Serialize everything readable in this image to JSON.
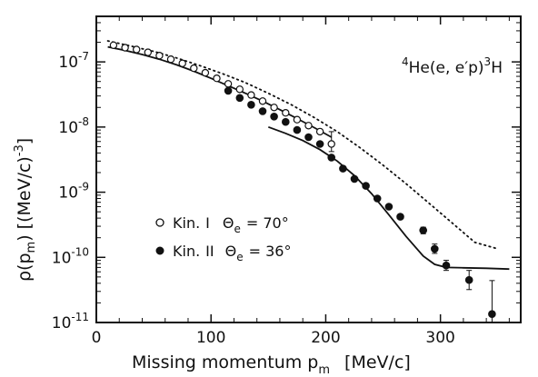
{
  "chart_data": {
    "type": "scatter",
    "xlabel": "Missing momentum p",
    "xlabel_sub": "m",
    "xlabel_unit": "[MeV/c]",
    "ylabel": "ρ(p_m) [(MeV/c)^-3]",
    "xlim": [
      0,
      370
    ],
    "ylim": [
      1e-11,
      5e-07
    ],
    "yscale": "log",
    "x_ticks": [
      0,
      100,
      200,
      300
    ],
    "x_tick_labels": [
      "0",
      "100",
      "200",
      "300"
    ],
    "y_ticks": [
      1e-11,
      1e-10,
      1e-09,
      1e-08,
      1e-07
    ],
    "y_tick_mantissa": "10",
    "y_tick_exponents": [
      "-11",
      "-10",
      "-9",
      "-8",
      "-7"
    ],
    "annotation": {
      "mass_number": "4",
      "nucleus": "He",
      "reaction": "(e, e′p)",
      "residual_mass_number": "3",
      "residual": "H"
    },
    "legend": {
      "position": "center-left",
      "entries": [
        {
          "marker": "open",
          "label_kin": "Kin.",
          "label_numeral": "I",
          "label_angle_symbol": "Θ",
          "label_angle_sub": "e",
          "label_value": "= 70°"
        },
        {
          "marker": "filled",
          "label_kin": "Kin.",
          "label_numeral": "II",
          "label_angle_symbol": "Θ",
          "label_angle_sub": "e",
          "label_value": "= 36°"
        }
      ]
    },
    "series": [
      {
        "name": "Kin. I Θe = 70°",
        "marker": "open",
        "x": [
          15,
          25,
          35,
          45,
          55,
          65,
          75,
          85,
          95,
          105,
          115,
          125,
          135,
          145,
          155,
          165,
          175,
          185,
          195,
          205
        ],
        "y": [
          1.8e-07,
          1.65e-07,
          1.55e-07,
          1.4e-07,
          1.25e-07,
          1.1e-07,
          9.5e-08,
          8e-08,
          6.8e-08,
          5.6e-08,
          4.6e-08,
          3.8e-08,
          3.1e-08,
          2.5e-08,
          2e-08,
          1.65e-08,
          1.3e-08,
          1.05e-08,
          8.5e-09,
          5.5e-09
        ]
      },
      {
        "name": "Kin. II Θe = 36°",
        "marker": "filled",
        "x": [
          115,
          125,
          135,
          145,
          155,
          165,
          175,
          185,
          195,
          205,
          215,
          225,
          235,
          245,
          255,
          265,
          285,
          295,
          305,
          325,
          345
        ],
        "y": [
          3.6e-08,
          2.8e-08,
          2.2e-08,
          1.75e-08,
          1.45e-08,
          1.2e-08,
          9e-09,
          7e-09,
          5.5e-09,
          3.4e-09,
          2.3e-09,
          1.6e-09,
          1.25e-09,
          8e-10,
          6e-10,
          4.2e-10,
          2.6e-10,
          1.35e-10,
          7.5e-11,
          4.5e-11,
          1.35e-11
        ]
      }
    ],
    "error_bars": [
      {
        "x": 205,
        "y_low": 4.2e-09,
        "y_high": 8.5e-09
      },
      {
        "x": 285,
        "y_low": 2.3e-10,
        "y_high": 2.9e-10
      },
      {
        "x": 295,
        "y_low": 1.15e-10,
        "y_high": 1.6e-10
      },
      {
        "x": 305,
        "y_low": 6.3e-11,
        "y_high": 9e-11
      },
      {
        "x": 325,
        "y_low": 3.2e-11,
        "y_high": 6.3e-11
      },
      {
        "x": 345,
        "y_low": 1e-11,
        "y_high": 4.4e-11
      }
    ],
    "curves": [
      {
        "style": "solid",
        "x": [
          10,
          25,
          40,
          55,
          70,
          85,
          100,
          115,
          130,
          145,
          160,
          175,
          190,
          205
        ],
        "y": [
          1.7e-07,
          1.5e-07,
          1.3e-07,
          1.1e-07,
          9e-08,
          7.2e-08,
          5.6e-08,
          4.3e-08,
          3.3e-08,
          2.5e-08,
          1.85e-08,
          1.35e-08,
          9.8e-09,
          7e-09
        ]
      },
      {
        "style": "solid",
        "x": [
          150,
          165,
          180,
          195,
          210,
          225,
          240,
          255,
          270,
          285,
          295,
          305,
          320,
          340,
          360
        ],
        "y": [
          1e-08,
          8e-09,
          6.2e-09,
          4.5e-09,
          3e-09,
          1.8e-09,
          9.5e-10,
          4.5e-10,
          2.1e-10,
          1.05e-10,
          7.8e-11,
          7e-11,
          6.9e-11,
          6.8e-11,
          6.6e-11
        ]
      },
      {
        "style": "dotted",
        "x": [
          10,
          30,
          50,
          70,
          90,
          110,
          130,
          150,
          170,
          190,
          210,
          230,
          250,
          270,
          290,
          310,
          330,
          350
        ],
        "y": [
          2.1e-07,
          1.75e-07,
          1.45e-07,
          1.15e-07,
          8.8e-08,
          6.6e-08,
          4.8e-08,
          3.3e-08,
          2.2e-08,
          1.4e-08,
          8.5e-09,
          4.8e-09,
          2.6e-09,
          1.35e-09,
          6.8e-10,
          3.4e-10,
          1.7e-10,
          1.35e-10
        ]
      }
    ],
    "grid": false
  }
}
